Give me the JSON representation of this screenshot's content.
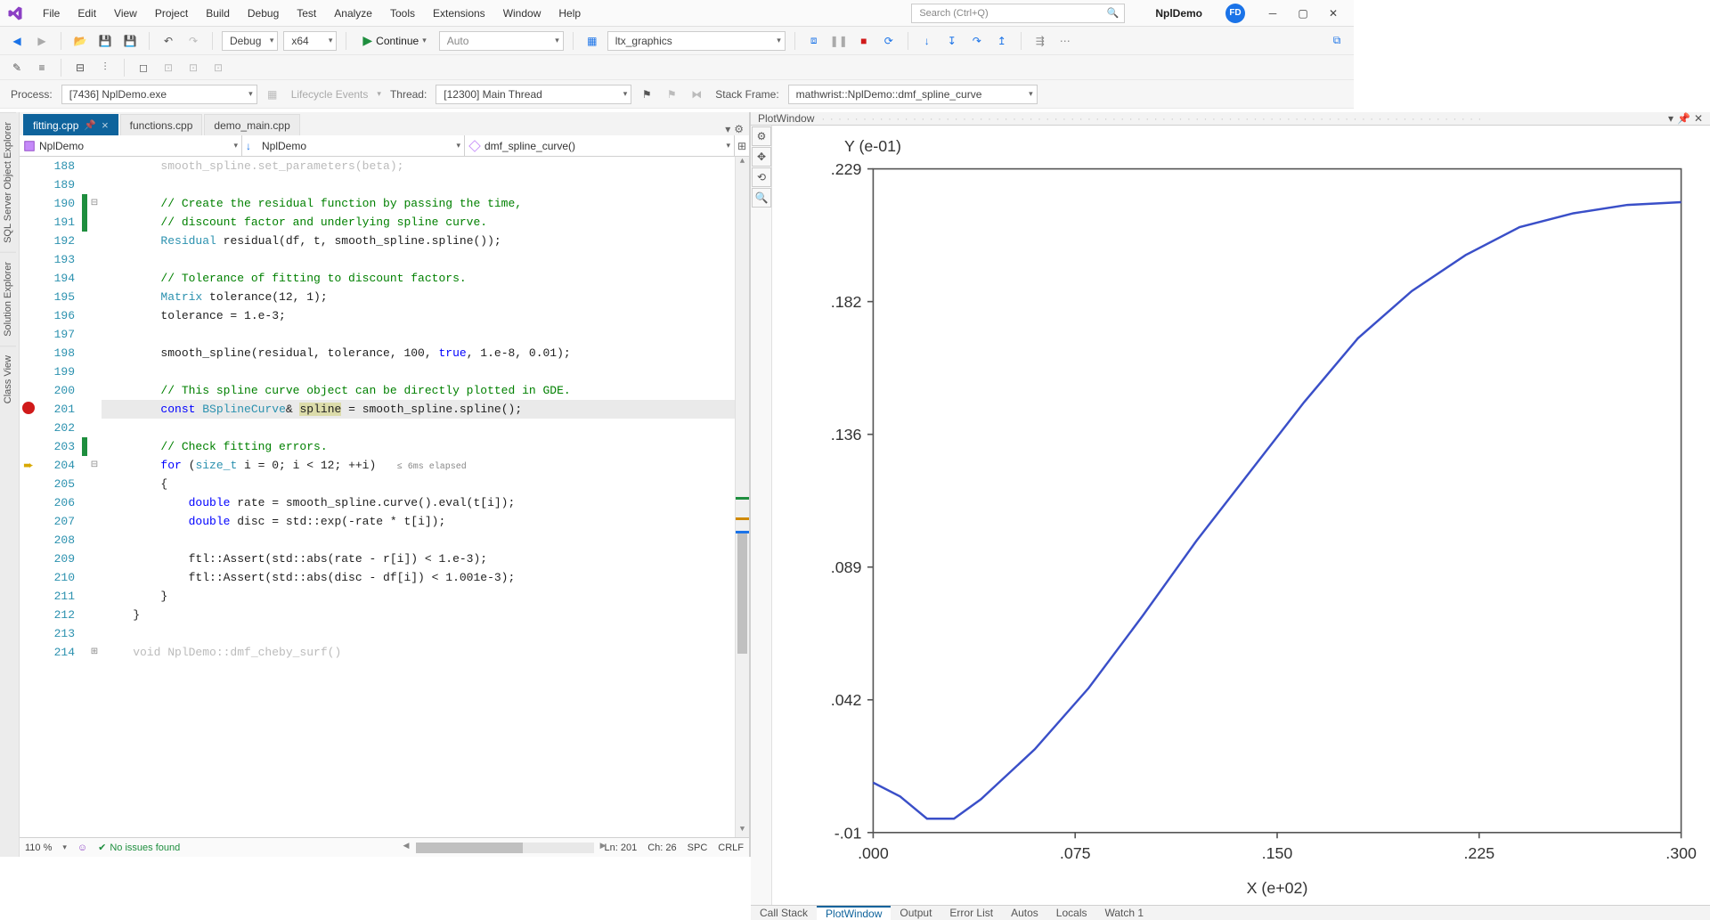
{
  "menu": [
    "File",
    "Edit",
    "View",
    "Project",
    "Build",
    "Debug",
    "Test",
    "Analyze",
    "Tools",
    "Extensions",
    "Window",
    "Help"
  ],
  "search_placeholder": "Search (Ctrl+Q)",
  "solution_name": "NplDemo",
  "user_initials": "FD",
  "toolbar": {
    "config": "Debug",
    "platform": "x64",
    "continue_label": "Continue",
    "auto": "Auto",
    "target": "ltx_graphics"
  },
  "debugbar": {
    "process_label": "Process:",
    "process": "[7436] NplDemo.exe",
    "lifecycle": "Lifecycle Events",
    "thread_label": "Thread:",
    "thread": "[12300] Main Thread",
    "stackframe_label": "Stack Frame:",
    "stackframe": "mathwrist::NplDemo::dmf_spline_curve"
  },
  "side_tabs": [
    "SQL Server Object Explorer",
    "Solution Explorer",
    "Class View"
  ],
  "tabs": [
    {
      "name": "fitting.cpp",
      "active": true,
      "pinned": true
    },
    {
      "name": "functions.cpp",
      "active": false,
      "pinned": false
    },
    {
      "name": "demo_main.cpp",
      "active": false,
      "pinned": false
    }
  ],
  "navbar": {
    "project": "NplDemo",
    "class": "NplDemo",
    "member": "dmf_spline_curve()"
  },
  "code": {
    "start_line": 188,
    "lines": [
      {
        "n": 188,
        "t": "        smooth_spline.set_parameters(beta);",
        "faded": true
      },
      {
        "n": 189,
        "t": ""
      },
      {
        "n": 190,
        "t": "        // Create the residual function by passing the time,",
        "cls": "c-comment",
        "cb": "green",
        "fold": "-"
      },
      {
        "n": 191,
        "t": "        // discount factor and underlying spline curve.",
        "cls": "c-comment",
        "cb": "green"
      },
      {
        "n": 192,
        "t": "        Residual residual(df, t, smooth_spline.spline());",
        "key": [
          "Residual"
        ]
      },
      {
        "n": 193,
        "t": ""
      },
      {
        "n": 194,
        "t": "        // Tolerance of fitting to discount factors.",
        "cls": "c-comment"
      },
      {
        "n": 195,
        "t": "        Matrix tolerance(12, 1);",
        "key": [
          "Matrix"
        ]
      },
      {
        "n": 196,
        "t": "        tolerance = 1.e-3;"
      },
      {
        "n": 197,
        "t": ""
      },
      {
        "n": 198,
        "t": "        smooth_spline(residual, tolerance, 100, true, 1.e-8, 0.01);",
        "key": [
          "true"
        ]
      },
      {
        "n": 199,
        "t": ""
      },
      {
        "n": 200,
        "t": "        // This spline curve object can be directly plotted in GDE.",
        "cls": "c-comment"
      },
      {
        "n": 201,
        "t": "        const BSplineCurve& spline = smooth_spline.spline();",
        "key": [
          "const",
          "BSplineCurve"
        ],
        "bp": true,
        "hl": "spline",
        "cur": true
      },
      {
        "n": 202,
        "t": ""
      },
      {
        "n": 203,
        "t": "        // Check fitting errors.",
        "cls": "c-comment",
        "cb": "green"
      },
      {
        "n": 204,
        "t": "        for (size_t i = 0; i < 12; ++i)",
        "key": [
          "for",
          "size_t"
        ],
        "arrow": true,
        "fold": "-",
        "elapsed": "≤ 6ms elapsed"
      },
      {
        "n": 205,
        "t": "        {"
      },
      {
        "n": 206,
        "t": "            double rate = smooth_spline.curve().eval(t[i]);",
        "key": [
          "double"
        ]
      },
      {
        "n": 207,
        "t": "            double disc = std::exp(-rate * t[i]);",
        "key": [
          "double"
        ]
      },
      {
        "n": 208,
        "t": ""
      },
      {
        "n": 209,
        "t": "            ftl::Assert(std::abs(rate - r[i]) < 1.e-3);"
      },
      {
        "n": 210,
        "t": "            ftl::Assert(std::abs(disc - df[i]) < 1.001e-3);"
      },
      {
        "n": 211,
        "t": "        }"
      },
      {
        "n": 212,
        "t": "    }"
      },
      {
        "n": 213,
        "t": ""
      },
      {
        "n": 214,
        "t": "    void NplDemo::dmf_cheby_surf()",
        "faded": true,
        "fold": "+"
      }
    ]
  },
  "editor_status": {
    "zoom": "110 %",
    "issues": "No issues found",
    "ln": "Ln: 201",
    "ch": "Ch: 26",
    "spc": "SPC",
    "crlf": "CRLF"
  },
  "plot": {
    "title": "PlotWindow",
    "y_label": "Y (e-01)",
    "x_label": "X (e+02)",
    "y_ticks": [
      "-.01",
      ".042",
      ".089",
      ".136",
      ".182",
      ".229"
    ],
    "x_ticks": [
      ".000",
      ".075",
      ".150",
      ".225",
      ".300"
    ],
    "curve_color": "#3a4fc8",
    "axis_color": "#555",
    "grid_color": "#e8e8e8",
    "data_x": [
      0,
      0.01,
      0.02,
      0.03,
      0.04,
      0.06,
      0.08,
      0.1,
      0.12,
      0.14,
      0.16,
      0.18,
      0.2,
      0.22,
      0.24,
      0.26,
      0.28,
      0.3
    ],
    "data_y": [
      0.008,
      0.003,
      -0.005,
      -0.005,
      0.002,
      0.02,
      0.042,
      0.068,
      0.095,
      0.12,
      0.145,
      0.168,
      0.185,
      0.198,
      0.208,
      0.213,
      0.216,
      0.217
    ]
  },
  "bottom_tabs": [
    "Call Stack",
    "PlotWindow",
    "Output",
    "Error List",
    "Autos",
    "Locals",
    "Watch 1"
  ],
  "active_bottom_tab": "PlotWindow"
}
